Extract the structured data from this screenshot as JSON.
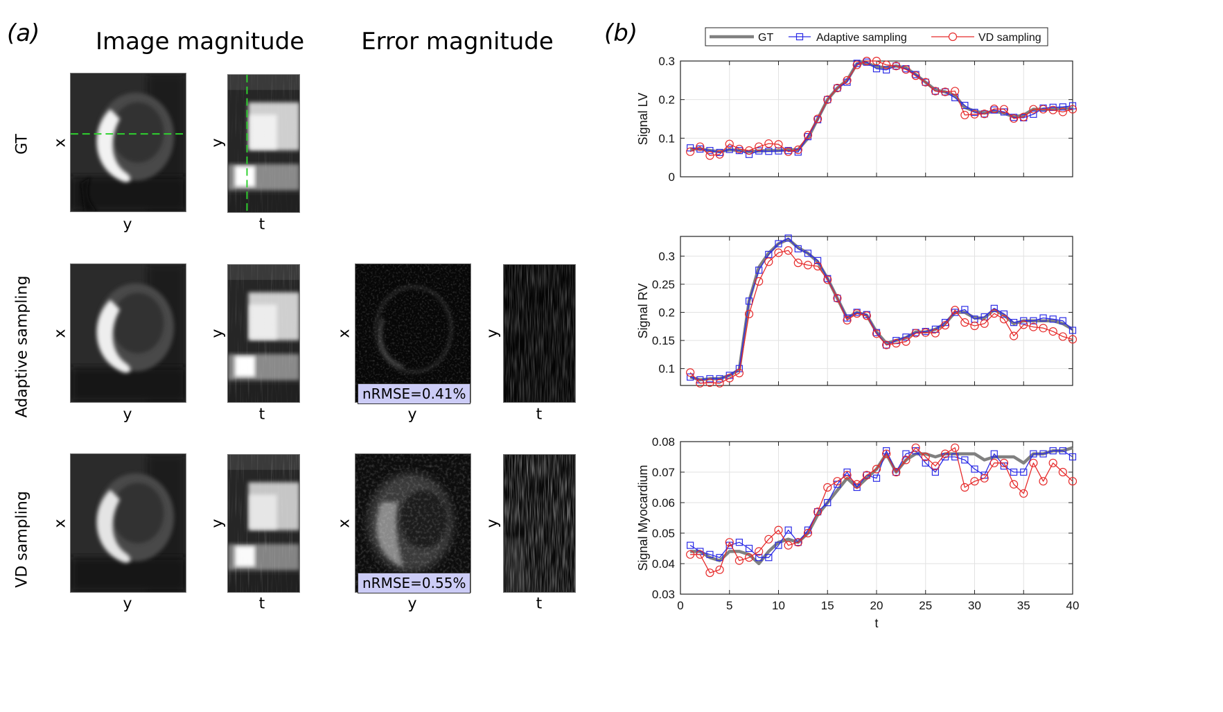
{
  "panels": {
    "a_label": "(a)",
    "b_label": "(b)"
  },
  "column_titles": {
    "image": "Image magnitude",
    "error": "Error magnitude"
  },
  "rows": [
    {
      "label": "GT",
      "nrmse": ""
    },
    {
      "label": "Adaptive sampling",
      "nrmse": "nRMSE=0.41%"
    },
    {
      "label": "VD sampling",
      "nrmse": "nRMSE=0.55%"
    }
  ],
  "axis_letters": {
    "x": "x",
    "y": "y",
    "t": "t"
  },
  "colors": {
    "gt": "#808080",
    "adaptive": "#2a2ae6",
    "vd": "#e62a2a",
    "crosshair": "#2fd12f",
    "nrmse_box": "#ccccf6"
  },
  "chart_data": [
    {
      "type": "line",
      "xlabel": "",
      "ylabel": "Signal LV",
      "xlim": [
        0,
        40
      ],
      "ylim": [
        0,
        0.3
      ],
      "yticks": [
        0,
        0.1,
        0.2,
        0.3
      ],
      "ytick_labels": [
        "0",
        "0.1",
        "0.2",
        "0.3"
      ],
      "xticks": [
        0,
        5,
        10,
        15,
        20,
        25,
        30,
        35,
        40
      ],
      "show_xtick_labels": false,
      "grid": true,
      "legend": {
        "placement": "top",
        "entries": [
          "GT",
          "Adaptive sampling",
          "VD sampling"
        ]
      },
      "x": [
        1,
        2,
        3,
        4,
        5,
        6,
        7,
        8,
        9,
        10,
        11,
        12,
        13,
        14,
        15,
        16,
        17,
        18,
        19,
        20,
        21,
        22,
        23,
        24,
        25,
        26,
        27,
        28,
        29,
        30,
        31,
        32,
        33,
        34,
        35,
        36,
        37,
        38,
        39,
        40
      ],
      "series": [
        {
          "name": "GT",
          "values": [
            0.072,
            0.072,
            0.068,
            0.065,
            0.07,
            0.068,
            0.065,
            0.067,
            0.068,
            0.068,
            0.07,
            0.07,
            0.1,
            0.15,
            0.2,
            0.23,
            0.25,
            0.293,
            0.295,
            0.285,
            0.283,
            0.287,
            0.282,
            0.265,
            0.245,
            0.225,
            0.22,
            0.21,
            0.18,
            0.17,
            0.165,
            0.17,
            0.165,
            0.155,
            0.16,
            0.175,
            0.175,
            0.175,
            0.178,
            0.176
          ]
        },
        {
          "name": "Adaptive sampling",
          "values": [
            0.075,
            0.072,
            0.068,
            0.063,
            0.071,
            0.068,
            0.058,
            0.067,
            0.066,
            0.067,
            0.068,
            0.064,
            0.104,
            0.148,
            0.2,
            0.23,
            0.245,
            0.294,
            0.297,
            0.28,
            0.277,
            0.287,
            0.28,
            0.265,
            0.245,
            0.222,
            0.22,
            0.205,
            0.185,
            0.167,
            0.163,
            0.173,
            0.168,
            0.154,
            0.153,
            0.162,
            0.178,
            0.18,
            0.181,
            0.184
          ]
        },
        {
          "name": "VD sampling",
          "values": [
            0.065,
            0.078,
            0.055,
            0.058,
            0.085,
            0.072,
            0.068,
            0.078,
            0.086,
            0.084,
            0.065,
            0.07,
            0.108,
            0.15,
            0.2,
            0.23,
            0.25,
            0.29,
            0.3,
            0.3,
            0.29,
            0.287,
            0.278,
            0.262,
            0.245,
            0.222,
            0.22,
            0.222,
            0.16,
            0.162,
            0.163,
            0.176,
            0.175,
            0.151,
            0.155,
            0.175,
            0.175,
            0.173,
            0.168,
            0.175
          ]
        }
      ]
    },
    {
      "type": "line",
      "xlabel": "",
      "ylabel": "Signal RV",
      "xlim": [
        0,
        40
      ],
      "ylim": [
        0.07,
        0.335
      ],
      "yticks": [
        0.1,
        0.15,
        0.2,
        0.25,
        0.3
      ],
      "ytick_labels": [
        "0.1",
        "0.15",
        "0.2",
        "0.25",
        "0.3"
      ],
      "xticks": [
        0,
        5,
        10,
        15,
        20,
        25,
        30,
        35,
        40
      ],
      "show_xtick_labels": false,
      "grid": true,
      "x": [
        1,
        2,
        3,
        4,
        5,
        6,
        7,
        8,
        9,
        10,
        11,
        12,
        13,
        14,
        15,
        16,
        17,
        18,
        19,
        20,
        21,
        22,
        23,
        24,
        25,
        26,
        27,
        28,
        29,
        30,
        31,
        32,
        33,
        34,
        35,
        36,
        37,
        38,
        39,
        40
      ],
      "series": [
        {
          "name": "GT",
          "values": [
            0.085,
            0.08,
            0.082,
            0.082,
            0.088,
            0.098,
            0.22,
            0.28,
            0.305,
            0.322,
            0.33,
            0.315,
            0.305,
            0.29,
            0.26,
            0.225,
            0.19,
            0.2,
            0.195,
            0.165,
            0.145,
            0.15,
            0.155,
            0.165,
            0.165,
            0.17,
            0.18,
            0.2,
            0.2,
            0.19,
            0.19,
            0.205,
            0.195,
            0.18,
            0.185,
            0.185,
            0.185,
            0.185,
            0.18,
            0.17
          ]
        },
        {
          "name": "Adaptive sampling",
          "values": [
            0.085,
            0.08,
            0.082,
            0.082,
            0.088,
            0.1,
            0.22,
            0.275,
            0.303,
            0.322,
            0.332,
            0.313,
            0.305,
            0.292,
            0.26,
            0.225,
            0.19,
            0.2,
            0.196,
            0.164,
            0.142,
            0.15,
            0.156,
            0.164,
            0.166,
            0.17,
            0.182,
            0.2,
            0.205,
            0.188,
            0.192,
            0.207,
            0.197,
            0.182,
            0.185,
            0.185,
            0.19,
            0.188,
            0.185,
            0.168
          ]
        },
        {
          "name": "VD sampling",
          "values": [
            0.093,
            0.074,
            0.075,
            0.074,
            0.083,
            0.092,
            0.197,
            0.255,
            0.29,
            0.306,
            0.31,
            0.288,
            0.284,
            0.282,
            0.258,
            0.225,
            0.186,
            0.198,
            0.194,
            0.162,
            0.142,
            0.145,
            0.148,
            0.163,
            0.164,
            0.163,
            0.177,
            0.204,
            0.182,
            0.176,
            0.18,
            0.198,
            0.188,
            0.158,
            0.178,
            0.174,
            0.172,
            0.166,
            0.157,
            0.152
          ]
        }
      ]
    },
    {
      "type": "line",
      "xlabel": "t",
      "ylabel": "Signal Myocardium",
      "xlim": [
        0,
        40
      ],
      "ylim": [
        0.03,
        0.08
      ],
      "yticks": [
        0.03,
        0.04,
        0.05,
        0.06,
        0.07,
        0.08
      ],
      "ytick_labels": [
        "0.03",
        "0.04",
        "0.05",
        "0.06",
        "0.07",
        "0.08"
      ],
      "xticks": [
        0,
        5,
        10,
        15,
        20,
        25,
        30,
        35,
        40
      ],
      "xtick_labels": [
        "0",
        "5",
        "10",
        "15",
        "20",
        "25",
        "30",
        "35",
        "40"
      ],
      "show_xtick_labels": true,
      "grid": true,
      "x": [
        1,
        2,
        3,
        4,
        5,
        6,
        7,
        8,
        9,
        10,
        11,
        12,
        13,
        14,
        15,
        16,
        17,
        18,
        19,
        20,
        21,
        22,
        23,
        24,
        25,
        26,
        27,
        28,
        29,
        30,
        31,
        32,
        33,
        34,
        35,
        36,
        37,
        38,
        39,
        40
      ],
      "series": [
        {
          "name": "GT",
          "values": [
            0.044,
            0.044,
            0.042,
            0.041,
            0.044,
            0.044,
            0.043,
            0.04,
            0.044,
            0.047,
            0.048,
            0.047,
            0.05,
            0.056,
            0.06,
            0.064,
            0.068,
            0.065,
            0.068,
            0.071,
            0.076,
            0.07,
            0.074,
            0.076,
            0.076,
            0.075,
            0.076,
            0.076,
            0.076,
            0.076,
            0.074,
            0.075,
            0.075,
            0.075,
            0.073,
            0.076,
            0.076,
            0.077,
            0.077,
            0.078
          ]
        },
        {
          "name": "Adaptive sampling",
          "values": [
            0.046,
            0.044,
            0.043,
            0.042,
            0.046,
            0.047,
            0.045,
            0.042,
            0.042,
            0.046,
            0.051,
            0.047,
            0.051,
            0.057,
            0.06,
            0.066,
            0.07,
            0.065,
            0.069,
            0.068,
            0.077,
            0.07,
            0.076,
            0.077,
            0.073,
            0.07,
            0.075,
            0.075,
            0.074,
            0.071,
            0.069,
            0.076,
            0.072,
            0.07,
            0.07,
            0.076,
            0.076,
            0.077,
            0.077,
            0.075
          ]
        },
        {
          "name": "VD sampling",
          "values": [
            0.043,
            0.043,
            0.037,
            0.038,
            0.047,
            0.041,
            0.042,
            0.044,
            0.048,
            0.051,
            0.046,
            0.047,
            0.05,
            0.057,
            0.065,
            0.067,
            0.069,
            0.066,
            0.069,
            0.071,
            0.076,
            0.07,
            0.074,
            0.078,
            0.075,
            0.072,
            0.076,
            0.078,
            0.065,
            0.067,
            0.068,
            0.073,
            0.073,
            0.066,
            0.063,
            0.073,
            0.067,
            0.073,
            0.07,
            0.067
          ]
        }
      ]
    }
  ]
}
